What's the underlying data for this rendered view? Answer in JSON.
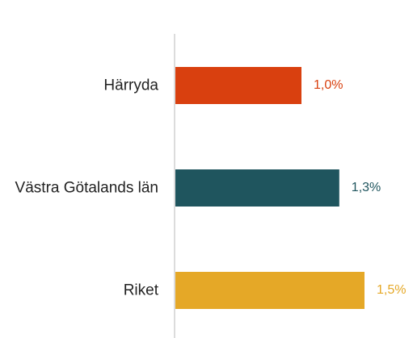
{
  "chart_data": {
    "type": "bar",
    "orientation": "horizontal",
    "categories": [
      "Härryda",
      "Västra Götalands län",
      "Riket"
    ],
    "values": [
      1.0,
      1.3,
      1.5
    ],
    "value_labels": [
      "1,0%",
      "1,3%",
      "1,5%"
    ],
    "colors": [
      "#d9400f",
      "#1f555e",
      "#e5a827"
    ]
  }
}
